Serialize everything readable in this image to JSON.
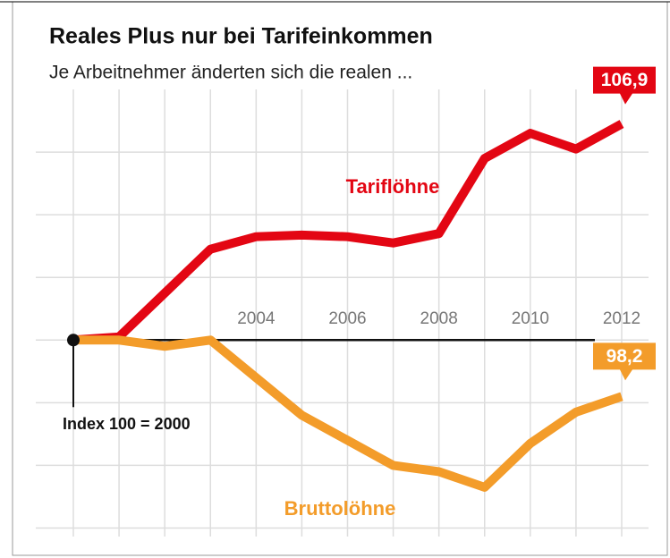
{
  "chart_data": {
    "type": "line",
    "title": "Reales Plus nur bei Tarifeinkommen",
    "subtitle": "Je Arbeitnehmer änderten sich die realen ...",
    "annotation": "Index 100 = 2000",
    "reference_line": 100,
    "x": [
      2000,
      2001,
      2002,
      2003,
      2004,
      2005,
      2006,
      2007,
      2008,
      2009,
      2010,
      2011,
      2012
    ],
    "xlim": [
      2000,
      2012
    ],
    "xticks": [
      2004,
      2006,
      2008,
      2010,
      2012
    ],
    "ylim": [
      93.9,
      108.8
    ],
    "yticks": [
      94,
      96,
      98,
      100,
      102,
      104,
      106
    ],
    "grid": true,
    "series": [
      {
        "name": "Tariflöhne",
        "color": "#e30613",
        "values": [
          100,
          100.1,
          101.5,
          102.9,
          103.3,
          103.35,
          103.3,
          103.1,
          103.4,
          105.8,
          106.6,
          106.1,
          106.9
        ],
        "value_labels": [
          null,
          null,
          null,
          null,
          null,
          null,
          null,
          null,
          null,
          null,
          null,
          null,
          "106,9"
        ]
      },
      {
        "name": "Bruttolöhne",
        "color": "#f39c2a",
        "values": [
          100,
          100,
          99.8,
          100,
          98.8,
          97.6,
          96.8,
          96.0,
          95.8,
          95.3,
          96.7,
          97.7,
          98.2
        ],
        "value_labels": [
          null,
          null,
          null,
          null,
          null,
          null,
          null,
          null,
          null,
          null,
          null,
          null,
          "98,2"
        ]
      }
    ]
  }
}
